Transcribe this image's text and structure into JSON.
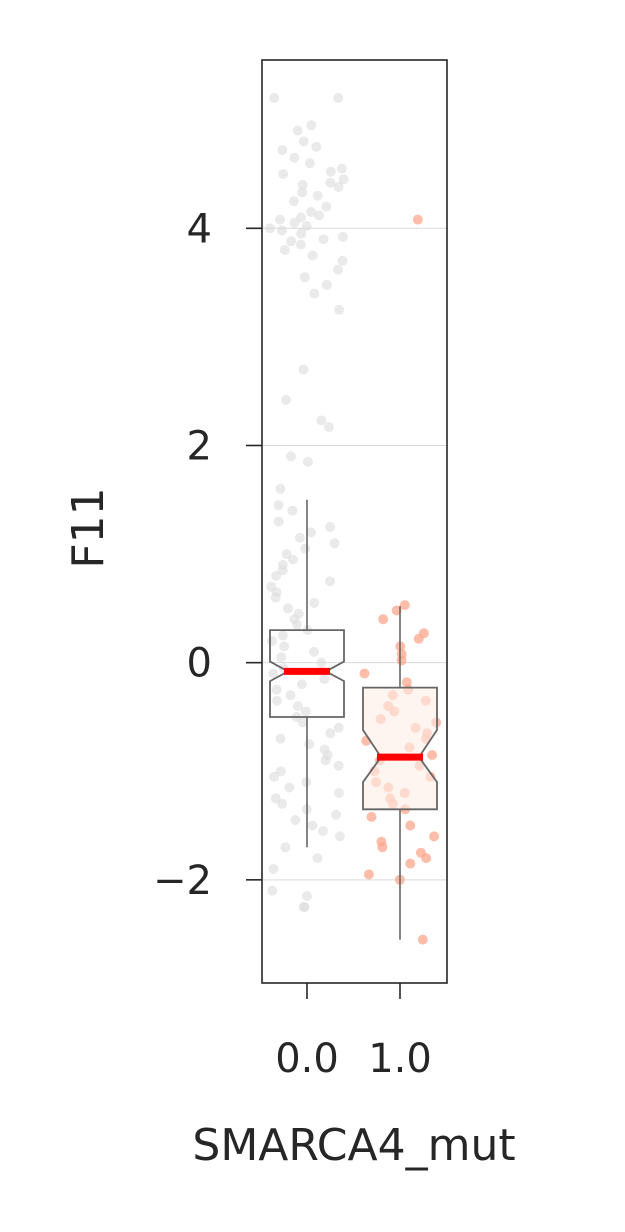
{
  "chart_data": {
    "type": "box",
    "xlabel": "SMARCA4_mut",
    "ylabel": "F11",
    "ylim": [
      -2.95,
      5.55
    ],
    "yticks": [
      -2,
      0,
      2,
      4
    ],
    "ytick_labels": [
      "−2",
      "0",
      "2",
      "4"
    ],
    "categories": [
      "0.0",
      "1.0"
    ],
    "grid": "horizontal",
    "notched": true,
    "colors": {
      "group0_points": "#dcdcdc",
      "group1_points": "#fca78c",
      "group1_box_fill": "#fdece6",
      "box_edge": "#666666",
      "median": "#ff0000",
      "frame": "#262626",
      "grid": "#d9d9d9"
    },
    "groups": [
      {
        "category": "0.0",
        "q1": -0.5,
        "median": -0.08,
        "q3": 0.3,
        "notch_low": -0.17,
        "notch_high": 0.01,
        "whisker_low": -1.7,
        "whisker_high": 1.5,
        "points": [
          5.2,
          5.2,
          4.95,
          4.9,
          4.8,
          4.75,
          4.72,
          4.65,
          4.6,
          4.55,
          4.52,
          4.5,
          4.45,
          4.42,
          4.4,
          4.38,
          4.33,
          4.3,
          4.25,
          4.2,
          4.15,
          4.12,
          4.1,
          4.08,
          4.05,
          4.02,
          4.0,
          3.98,
          3.95,
          3.92,
          3.9,
          3.88,
          3.85,
          3.8,
          3.75,
          3.7,
          3.62,
          3.55,
          3.48,
          3.4,
          3.25,
          2.7,
          2.42,
          2.23,
          2.17,
          1.9,
          1.85,
          1.6,
          1.45,
          1.4,
          1.3,
          1.25,
          1.2,
          1.15,
          1.1,
          1.05,
          1.0,
          0.95,
          0.9,
          0.85,
          0.8,
          0.75,
          0.7,
          0.65,
          0.6,
          0.55,
          0.5,
          0.45,
          0.4,
          0.35,
          0.3,
          0.25,
          0.2,
          0.15,
          0.1,
          0.05,
          0.0,
          -0.05,
          -0.1,
          -0.15,
          -0.2,
          -0.25,
          -0.3,
          -0.35,
          -0.4,
          -0.45,
          -0.5,
          -0.55,
          -0.6,
          -0.65,
          -0.7,
          -0.75,
          -0.8,
          -0.85,
          -0.9,
          -0.95,
          -1.0,
          -1.05,
          -1.1,
          -1.15,
          -1.2,
          -1.25,
          -1.3,
          -1.35,
          -1.4,
          -1.45,
          -1.5,
          -1.55,
          -1.6,
          -1.7,
          -1.8,
          -1.9,
          -2.1,
          -2.15,
          -2.25,
          -2.25
        ]
      },
      {
        "category": "1.0",
        "q1": -1.35,
        "median": -0.87,
        "q3": -0.23,
        "notch_low": -1.1,
        "notch_high": -0.62,
        "whisker_low": -2.55,
        "whisker_high": 0.52,
        "points": [
          4.08,
          0.53,
          0.48,
          0.4,
          0.27,
          0.22,
          0.15,
          0.08,
          0.02,
          -0.1,
          -0.18,
          -0.25,
          -0.3,
          -0.35,
          -0.4,
          -0.45,
          -0.52,
          -0.55,
          -0.6,
          -0.65,
          -0.7,
          -0.72,
          -0.78,
          -0.85,
          -0.9,
          -0.95,
          -1.0,
          -1.05,
          -1.1,
          -1.15,
          -1.2,
          -1.25,
          -1.3,
          -1.35,
          -1.42,
          -1.5,
          -1.6,
          -1.65,
          -1.7,
          -1.75,
          -1.8,
          -1.85,
          -1.95,
          -2.0,
          -2.55
        ]
      }
    ]
  }
}
